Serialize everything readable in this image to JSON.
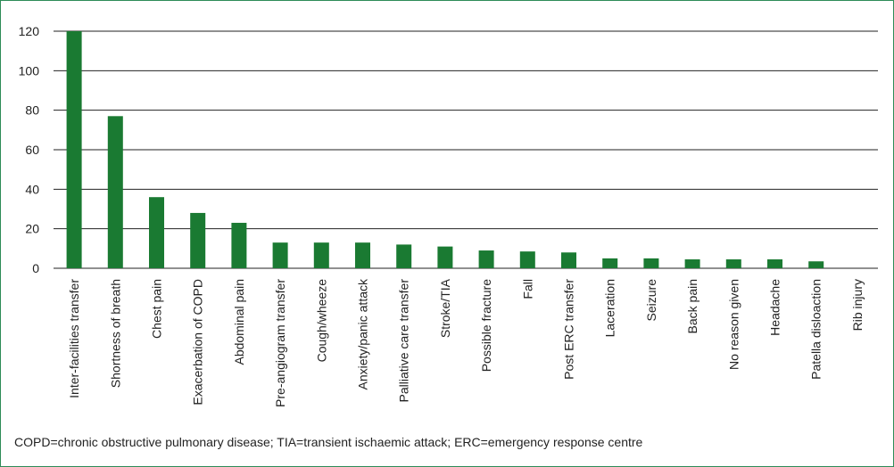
{
  "chart_data": {
    "type": "bar",
    "categories": [
      "Inter-facilities transfer",
      "Shortness of breath",
      "Chest pain",
      "Exacerbation of COPD",
      "Abdominal pain",
      "Pre-angiogram transfer",
      "Cough/wheeze",
      "Anxiety/panic attack",
      "Palliative care transfer",
      "Stroke/TIA",
      "Possible fracture",
      "Fall",
      "Post ERC transfer",
      "Laceration",
      "Seizure",
      "Back pain",
      "No reason given",
      "Headache",
      "Patella disloaction",
      "Rib injury"
    ],
    "values": [
      120,
      77,
      36,
      28,
      23,
      13,
      13,
      13,
      12,
      11,
      9,
      8.5,
      8,
      5,
      5,
      4.5,
      4.5,
      4.5,
      3.5,
      0
    ],
    "ylim": [
      0,
      120
    ],
    "yticks": [
      "0",
      "20",
      "40",
      "60",
      "80",
      "100",
      "120"
    ],
    "ytick_values": [
      0,
      20,
      40,
      60,
      80,
      100,
      120
    ],
    "grid": true,
    "colors": {
      "bar": "#1a7a32",
      "grid": "#222222",
      "border": "#2e8b57"
    },
    "footnote": "COPD=chronic obstructive pulmonary disease; TIA=transient ischaemic attack; ERC=emergency response centre"
  }
}
